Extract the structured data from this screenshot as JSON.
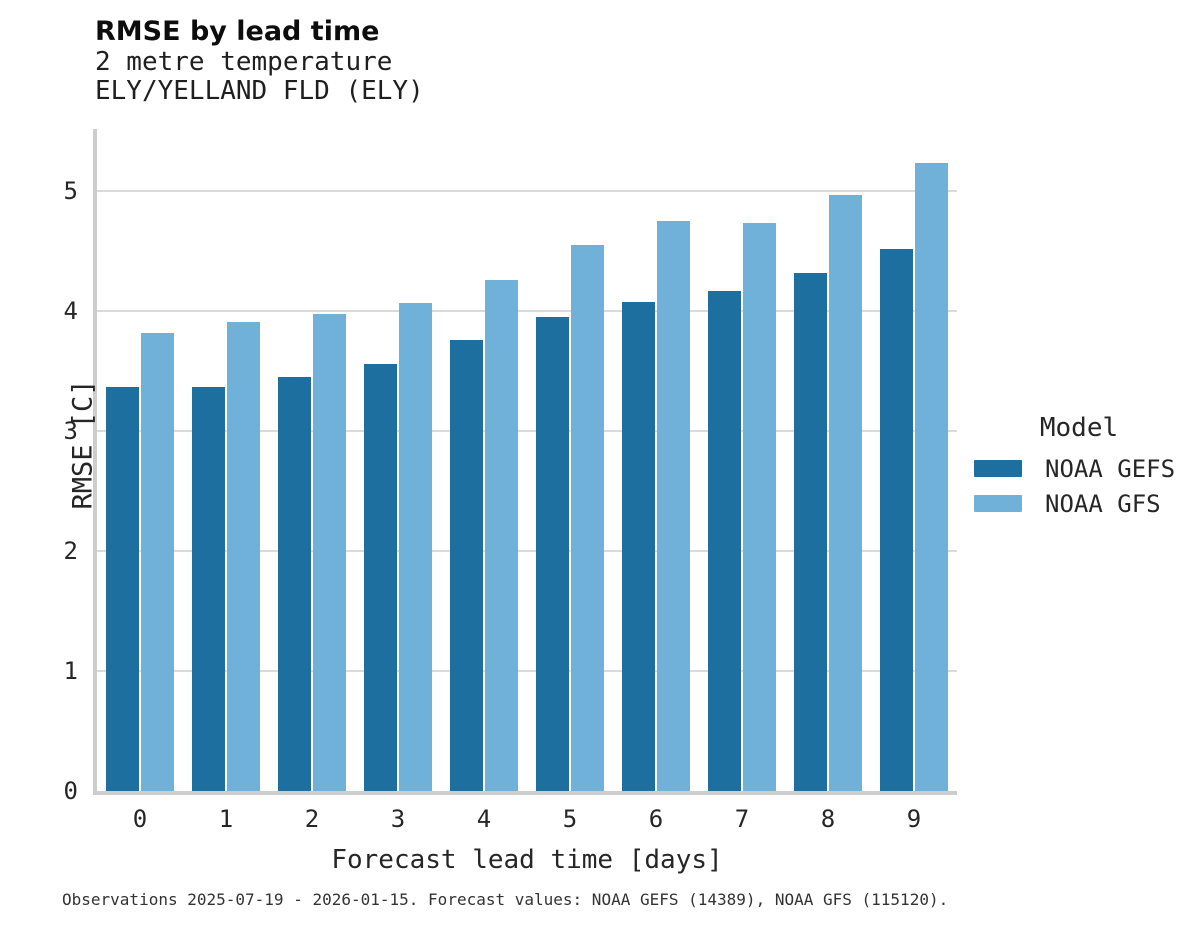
{
  "header": {
    "title": "RMSE by lead time",
    "subtitle_line1": "2 metre temperature",
    "subtitle_line2": "ELY/YELLAND FLD (ELY)"
  },
  "chart_data": {
    "type": "bar",
    "title": "RMSE by lead time",
    "subtitle": "2 metre temperature — ELY/YELLAND FLD (ELY)",
    "categories": [
      "0",
      "1",
      "2",
      "3",
      "4",
      "5",
      "6",
      "7",
      "8",
      "9"
    ],
    "series": [
      {
        "name": "NOAA GEFS",
        "color": "#1d6f9f",
        "values": [
          3.37,
          3.37,
          3.45,
          3.56,
          3.76,
          3.95,
          4.08,
          4.17,
          4.32,
          4.52
        ]
      },
      {
        "name": "NOAA GFS",
        "color": "#6fb1d9",
        "values": [
          3.82,
          3.91,
          3.98,
          4.07,
          4.26,
          4.55,
          4.75,
          4.74,
          4.97,
          5.24
        ]
      }
    ],
    "xlabel": "Forecast lead time [days]",
    "ylabel": "RMSE [C]",
    "ylim": [
      0,
      5.52
    ],
    "yticks": [
      0,
      1,
      2,
      3,
      4,
      5
    ],
    "grid": true,
    "legend_title": "Model",
    "legend_position": "right"
  },
  "legend": {
    "title": "Model",
    "items": [
      {
        "label": "NOAA GEFS",
        "color": "#1d6f9f"
      },
      {
        "label": "NOAA GFS",
        "color": "#6fb1d9"
      }
    ]
  },
  "footer": {
    "note": "Observations 2025-07-19 - 2026-01-15. Forecast values: NOAA GEFS (14389), NOAA GFS (115120)."
  },
  "colors": {
    "series_dark": "#1d6f9f",
    "series_light": "#6fb1d9",
    "gridline": "#dadada",
    "spine": "#cdcdcd",
    "text": "#262626",
    "background": "#ffffff"
  }
}
